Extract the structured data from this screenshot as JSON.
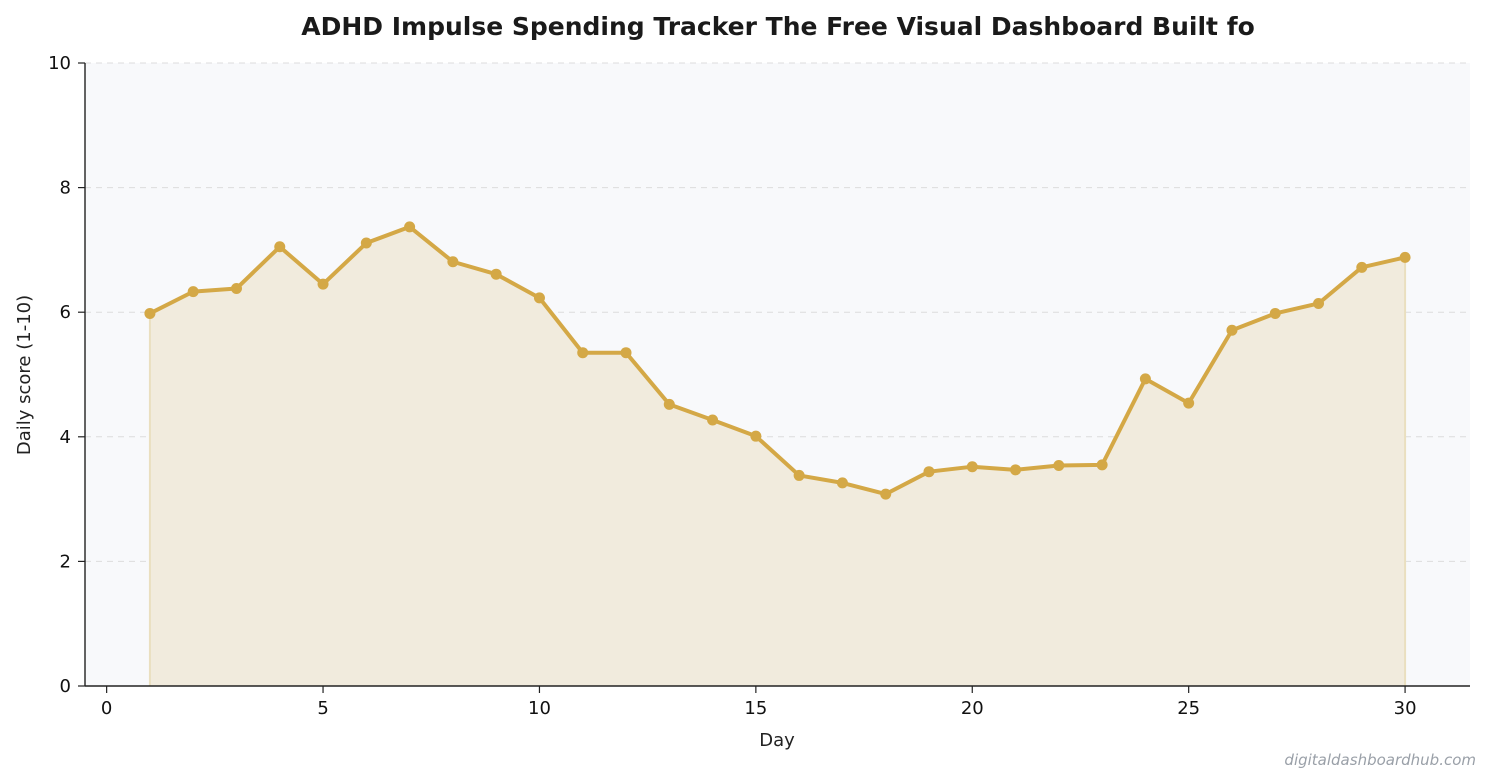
{
  "chart_data": {
    "type": "area",
    "title": "ADHD Impulse Spending Tracker  The Free Visual Dashboard Built fo",
    "xlabel": "Day",
    "ylabel": "Daily score (1-10)",
    "xlim": [
      -0.5,
      31.5
    ],
    "ylim": [
      0,
      10
    ],
    "xticks": [
      0,
      5,
      10,
      15,
      20,
      25,
      30
    ],
    "yticks": [
      0,
      2,
      4,
      6,
      8,
      10
    ],
    "grid": "y-dashed",
    "colors": {
      "line": "#d4a846",
      "fill": "#f1ebdd",
      "plot_bg": "#f8f9fb"
    },
    "series": [
      {
        "x": [
          1,
          2,
          3,
          4,
          5,
          6,
          7,
          8,
          9,
          10,
          11,
          12,
          13,
          14,
          15,
          16,
          17,
          18,
          19,
          20,
          21,
          22,
          23,
          24,
          25,
          26,
          27,
          28,
          29,
          30
        ],
        "values": [
          5.98,
          6.33,
          6.38,
          7.05,
          6.45,
          7.11,
          7.37,
          6.81,
          6.61,
          6.23,
          5.35,
          5.35,
          4.52,
          4.27,
          4.01,
          3.38,
          3.26,
          3.08,
          3.44,
          3.52,
          3.47,
          3.54,
          3.55,
          4.93,
          4.54,
          5.71,
          5.98,
          6.14,
          6.72,
          6.88
        ]
      }
    ]
  },
  "watermark": "digitaldashboardhub.com"
}
